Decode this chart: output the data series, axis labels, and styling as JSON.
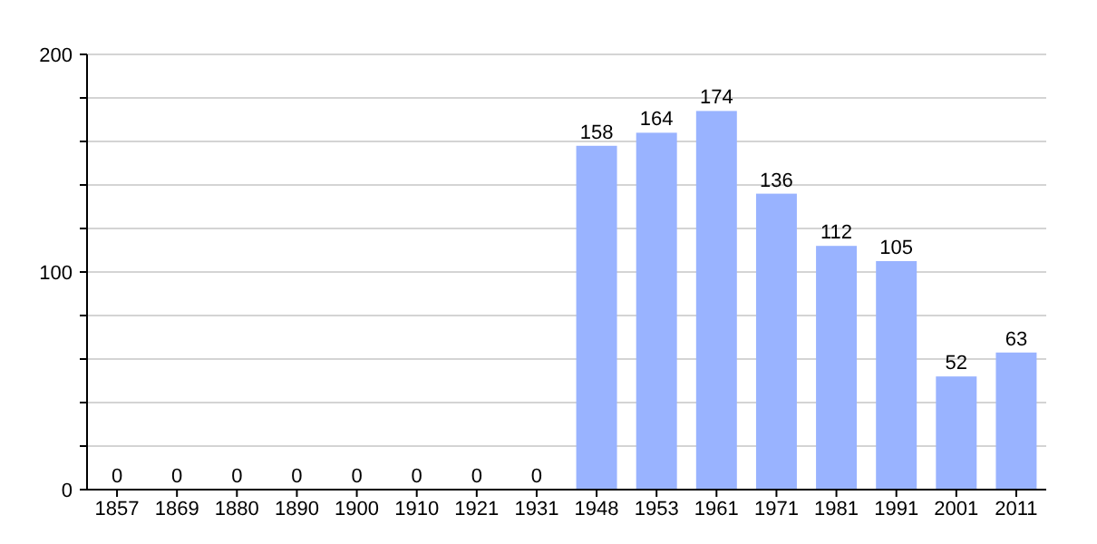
{
  "chart_data": {
    "type": "bar",
    "categories": [
      "1857",
      "1869",
      "1880",
      "1890",
      "1900",
      "1910",
      "1921",
      "1931",
      "1948",
      "1953",
      "1961",
      "1971",
      "1981",
      "1991",
      "2001",
      "2011"
    ],
    "values": [
      0,
      0,
      0,
      0,
      0,
      0,
      0,
      0,
      158,
      164,
      174,
      136,
      112,
      105,
      52,
      63
    ],
    "color": "#99b3ff",
    "ylim": [
      0,
      200
    ],
    "yticks": [
      0,
      {
        "value": 20,
        "label": null
      },
      {
        "value": 40,
        "label": null
      },
      {
        "value": 60,
        "label": null
      },
      {
        "value": 80,
        "label": null
      },
      100,
      {
        "value": 120,
        "label": null
      },
      {
        "value": 140,
        "label": null
      },
      {
        "value": 160,
        "label": null
      },
      {
        "value": 180,
        "label": null
      },
      200
    ],
    "grid": "y",
    "data_labels": true
  }
}
